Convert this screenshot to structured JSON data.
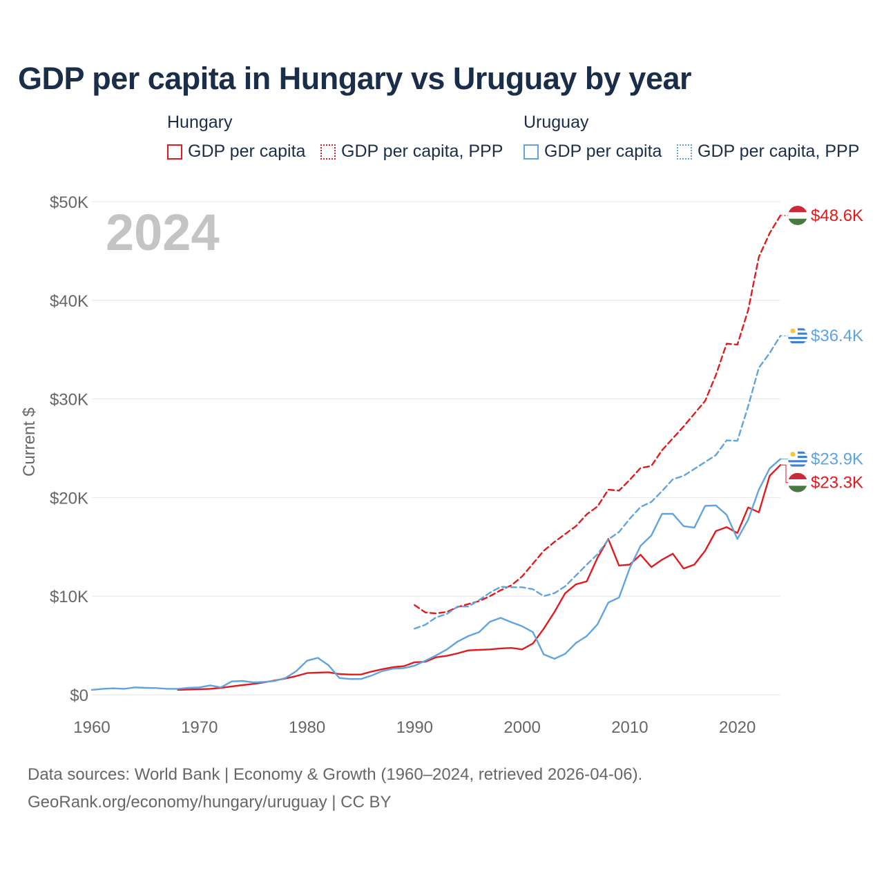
{
  "title": "GDP per capita in Hungary vs Uruguay by year",
  "legend": {
    "hungary_title": "Hungary",
    "uruguay_title": "Uruguay",
    "hu_gdp": "GDP per capita",
    "hu_ppp": "GDP per capita, PPP",
    "uy_gdp": "GDP per capita",
    "uy_ppp": "GDP per capita, PPP"
  },
  "colors": {
    "hungary": "#e31a1c",
    "uruguay": "#5fa3e0",
    "grid": "#e6e6e6",
    "axis_text": "#666666",
    "watermark": "#c4c4c4"
  },
  "source": {
    "line1": "Data sources: World Bank | Economy & Growth (1960–2024, retrieved 2026-04-06).",
    "line2": "GeoRank.org/economy/hungary/uruguay | CC BY"
  },
  "chart_data": {
    "type": "line",
    "title": "GDP per capita in Hungary vs Uruguay by year",
    "ylabel": "Current $",
    "xlabel": "",
    "year_label": "2024",
    "xlim": [
      1960,
      2024
    ],
    "ylim": [
      0,
      50000
    ],
    "x_ticks": [
      1960,
      1970,
      1980,
      1990,
      2000,
      2010,
      2020
    ],
    "y_ticks": [
      0,
      10000,
      20000,
      30000,
      40000,
      50000
    ],
    "y_tick_labels": [
      "$0",
      "$10K",
      "$20K",
      "$30K",
      "$40K",
      "$50K"
    ],
    "grid": true,
    "series": [
      {
        "name": "Hungary GDP per capita",
        "country": "hungary",
        "dashed": false,
        "end_label": "$23.3K",
        "x": [
          1968,
          1969,
          1970,
          1971,
          1972,
          1973,
          1974,
          1975,
          1976,
          1977,
          1978,
          1979,
          1980,
          1981,
          1982,
          1983,
          1984,
          1985,
          1986,
          1987,
          1988,
          1989,
          1990,
          1991,
          1992,
          1993,
          1994,
          1995,
          1996,
          1997,
          1998,
          1999,
          2000,
          2001,
          2002,
          2003,
          2004,
          2005,
          2006,
          2007,
          2008,
          2009,
          2010,
          2011,
          2012,
          2013,
          2014,
          2015,
          2016,
          2017,
          2018,
          2019,
          2020,
          2021,
          2022,
          2023,
          2024
        ],
        "values": [
          500,
          530,
          570,
          600,
          700,
          850,
          980,
          1100,
          1250,
          1450,
          1650,
          1900,
          2200,
          2250,
          2280,
          2100,
          2050,
          2050,
          2350,
          2600,
          2800,
          2900,
          3300,
          3350,
          3800,
          3950,
          4200,
          4500,
          4550,
          4600,
          4700,
          4750,
          4600,
          5200,
          6700,
          8400,
          10300,
          11200,
          11500,
          13900,
          15800,
          13100,
          13200,
          14200,
          12950,
          13700,
          14300,
          12800,
          13200,
          14600,
          16600,
          17000,
          16400,
          19000,
          18500,
          22200,
          23300
        ]
      },
      {
        "name": "Hungary GDP per capita, PPP",
        "country": "hungary",
        "dashed": true,
        "end_label": "$48.6K",
        "x": [
          1990,
          1991,
          1992,
          1993,
          1994,
          1995,
          1996,
          1997,
          1998,
          1999,
          2000,
          2001,
          2002,
          2003,
          2004,
          2005,
          2006,
          2007,
          2008,
          2009,
          2010,
          2011,
          2012,
          2013,
          2014,
          2015,
          2016,
          2017,
          2018,
          2019,
          2020,
          2021,
          2022,
          2023,
          2024
        ],
        "values": [
          9100,
          8350,
          8250,
          8400,
          8900,
          9200,
          9500,
          10000,
          10600,
          11100,
          12000,
          13300,
          14600,
          15500,
          16300,
          17100,
          18300,
          19100,
          20800,
          20700,
          21800,
          23000,
          23200,
          24800,
          26000,
          27200,
          28500,
          29800,
          32400,
          35600,
          35500,
          39000,
          44400,
          46800,
          48600
        ]
      },
      {
        "name": "Uruguay GDP per capita",
        "country": "uruguay",
        "dashed": false,
        "end_label": "$23.9K",
        "x": [
          1960,
          1961,
          1962,
          1963,
          1964,
          1965,
          1966,
          1967,
          1968,
          1969,
          1970,
          1971,
          1972,
          1973,
          1974,
          1975,
          1976,
          1977,
          1978,
          1979,
          1980,
          1981,
          1982,
          1983,
          1984,
          1985,
          1986,
          1987,
          1988,
          1989,
          1990,
          1991,
          1992,
          1993,
          1994,
          1995,
          1996,
          1997,
          1998,
          1999,
          2000,
          2001,
          2002,
          2003,
          2004,
          2005,
          2006,
          2007,
          2008,
          2009,
          2010,
          2011,
          2012,
          2013,
          2014,
          2015,
          2016,
          2017,
          2018,
          2019,
          2020,
          2021,
          2022,
          2023,
          2024
        ],
        "values": [
          500,
          600,
          650,
          600,
          750,
          700,
          680,
          600,
          600,
          700,
          750,
          950,
          750,
          1350,
          1400,
          1250,
          1300,
          1400,
          1700,
          2400,
          3450,
          3750,
          3000,
          1700,
          1600,
          1600,
          1950,
          2400,
          2650,
          2700,
          2950,
          3450,
          4000,
          4600,
          5400,
          5950,
          6350,
          7400,
          7800,
          7350,
          6950,
          6350,
          4100,
          3650,
          4150,
          5250,
          5950,
          7150,
          9350,
          9850,
          12850,
          15100,
          16150,
          18350,
          18350,
          17100,
          16950,
          19150,
          19200,
          18250,
          15800,
          17750,
          20800,
          22950,
          23900
        ]
      },
      {
        "name": "Uruguay GDP per capita, PPP",
        "country": "uruguay",
        "dashed": true,
        "end_label": "$36.4K",
        "x": [
          1990,
          1991,
          1992,
          1993,
          1994,
          1995,
          1996,
          1997,
          1998,
          1999,
          2000,
          2001,
          2002,
          2003,
          2004,
          2005,
          2006,
          2007,
          2008,
          2009,
          2010,
          2011,
          2012,
          2013,
          2014,
          2015,
          2016,
          2017,
          2018,
          2019,
          2020,
          2021,
          2022,
          2023,
          2024
        ],
        "values": [
          6700,
          7100,
          7850,
          8200,
          8950,
          8950,
          9600,
          10350,
          10950,
          10900,
          10900,
          10700,
          10000,
          10300,
          11000,
          12100,
          13200,
          14250,
          15750,
          16500,
          17850,
          19050,
          19550,
          20650,
          21850,
          22200,
          22900,
          23600,
          24300,
          25800,
          25750,
          29250,
          33150,
          34650,
          36400
        ]
      }
    ]
  }
}
